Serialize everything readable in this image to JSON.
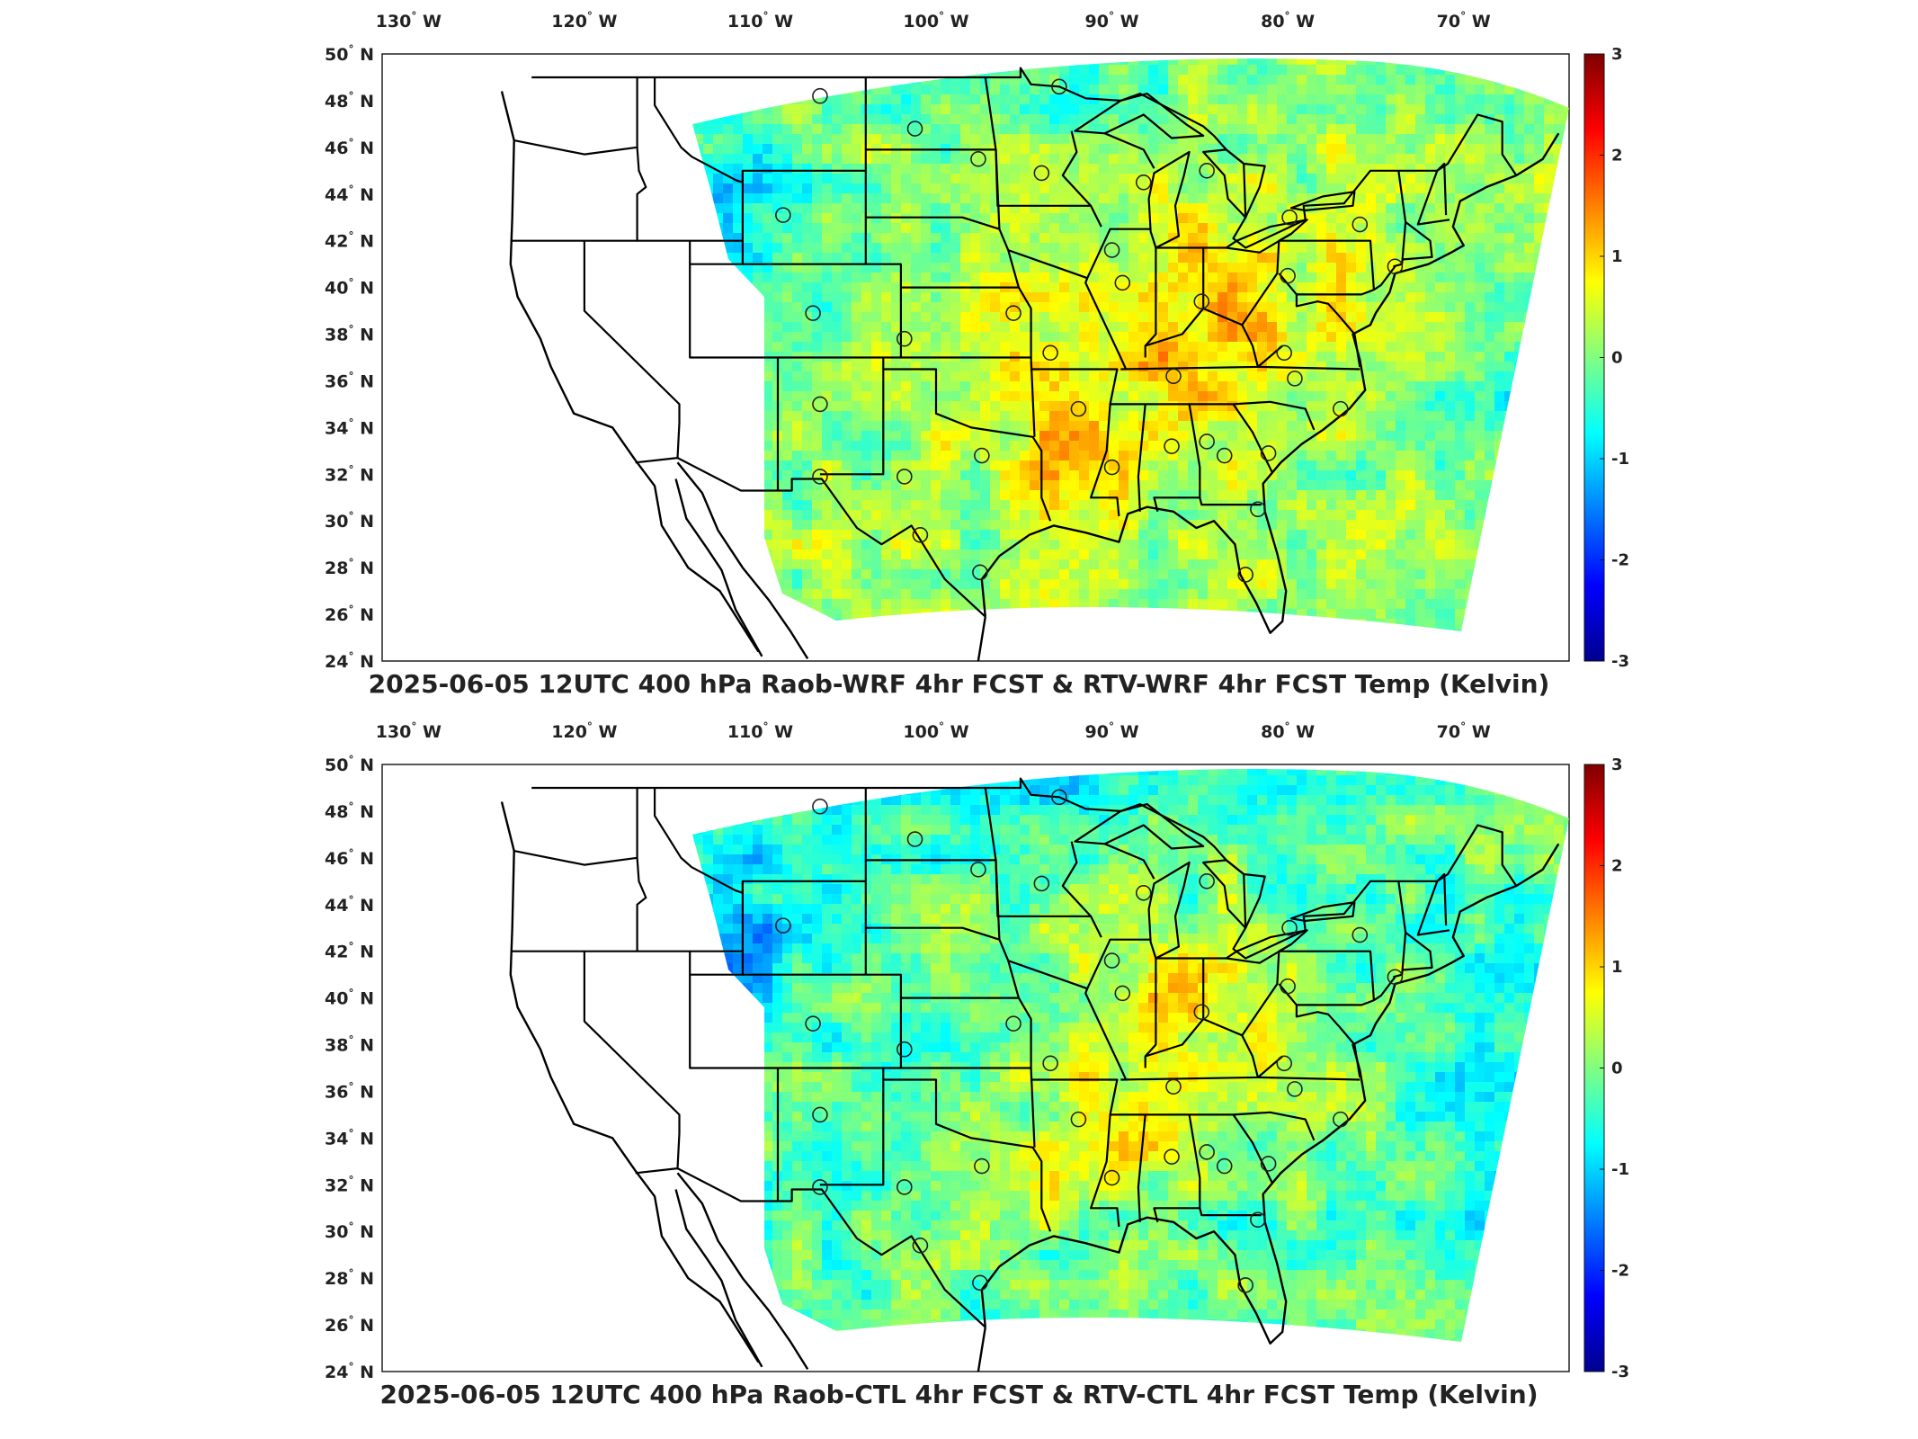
{
  "panels": [
    {
      "title": "2025-06-05 12UTC 400 hPa Raob-WRF 4hr FCST & RTV-WRF 4hr FCST Temp (Kelvin)",
      "stations_orange": [
        [
          -107.0,
          38.9
        ],
        [
          -95.6,
          38.9
        ]
      ],
      "stations_yellow": [
        [
          -101.8,
          37.8
        ]
      ]
    },
    {
      "title": "2025-06-05 12UTC 400 hPa Raob-CTL 4hr FCST & RTV-CTL 4hr FCST Temp (Kelvin)",
      "stations_orange": [
        [
          -107.0,
          38.9
        ],
        [
          -95.6,
          38.9
        ]
      ],
      "stations_yellow": [
        [
          -101.8,
          37.8
        ]
      ]
    }
  ],
  "lon_ticks": [
    {
      "label": "130",
      "dir": "W",
      "lon": -130
    },
    {
      "label": "120",
      "dir": "W",
      "lon": -120
    },
    {
      "label": "110",
      "dir": "W",
      "lon": -110
    },
    {
      "label": "100",
      "dir": "W",
      "lon": -100
    },
    {
      "label": "90",
      "dir": "W",
      "lon": -90
    },
    {
      "label": "80",
      "dir": "W",
      "lon": -80
    },
    {
      "label": "70",
      "dir": "W",
      "lon": -70
    }
  ],
  "lat_ticks": [
    {
      "label": "50",
      "dir": "N",
      "lat": 50
    },
    {
      "label": "48",
      "dir": "N",
      "lat": 48
    },
    {
      "label": "46",
      "dir": "N",
      "lat": 46
    },
    {
      "label": "44",
      "dir": "N",
      "lat": 44
    },
    {
      "label": "42",
      "dir": "N",
      "lat": 42
    },
    {
      "label": "40",
      "dir": "N",
      "lat": 40
    },
    {
      "label": "38",
      "dir": "N",
      "lat": 38
    },
    {
      "label": "36",
      "dir": "N",
      "lat": 36
    },
    {
      "label": "34",
      "dir": "N",
      "lat": 34
    },
    {
      "label": "32",
      "dir": "N",
      "lat": 32
    },
    {
      "label": "30",
      "dir": "N",
      "lat": 30
    },
    {
      "label": "28",
      "dir": "N",
      "lat": 28
    },
    {
      "label": "26",
      "dir": "N",
      "lat": 26
    },
    {
      "label": "24",
      "dir": "N",
      "lat": 24
    }
  ],
  "colorbar": {
    "min": -3,
    "max": 3,
    "ticks": [
      "3",
      "2",
      "1",
      "0",
      "-1",
      "-2",
      "-3"
    ],
    "colors": [
      "#7f0000",
      "#ff0000",
      "#ff8000",
      "#ffff00",
      "#80ff80",
      "#00ffff",
      "#0080ff",
      "#0000ff",
      "#00008f"
    ]
  },
  "stations": [
    [
      -106.6,
      48.2
    ],
    [
      -101.2,
      46.8
    ],
    [
      -97.6,
      45.5
    ],
    [
      -93.0,
      48.6
    ],
    [
      -94.0,
      44.9
    ],
    [
      -108.7,
      43.1
    ],
    [
      -88.2,
      44.5
    ],
    [
      -84.6,
      45.0
    ],
    [
      -90.0,
      41.6
    ],
    [
      -89.4,
      40.2
    ],
    [
      -75.9,
      42.7
    ],
    [
      -79.9,
      43.0
    ],
    [
      -80.0,
      40.5
    ],
    [
      -84.9,
      39.4
    ],
    [
      -93.5,
      37.2
    ],
    [
      -86.5,
      36.2
    ],
    [
      -80.2,
      37.2
    ],
    [
      -79.6,
      36.1
    ],
    [
      -77.0,
      34.8
    ],
    [
      -91.9,
      34.8
    ],
    [
      -106.6,
      35.0
    ],
    [
      -106.6,
      31.9
    ],
    [
      -101.8,
      31.9
    ],
    [
      -97.4,
      32.8
    ],
    [
      -100.9,
      29.4
    ],
    [
      -97.5,
      27.8
    ],
    [
      -90.0,
      32.3
    ],
    [
      -86.6,
      33.2
    ],
    [
      -84.6,
      33.4
    ],
    [
      -81.1,
      32.9
    ],
    [
      -81.7,
      30.5
    ],
    [
      -82.4,
      27.7
    ],
    [
      -73.9,
      40.9
    ],
    [
      -83.6,
      32.8
    ]
  ]
}
